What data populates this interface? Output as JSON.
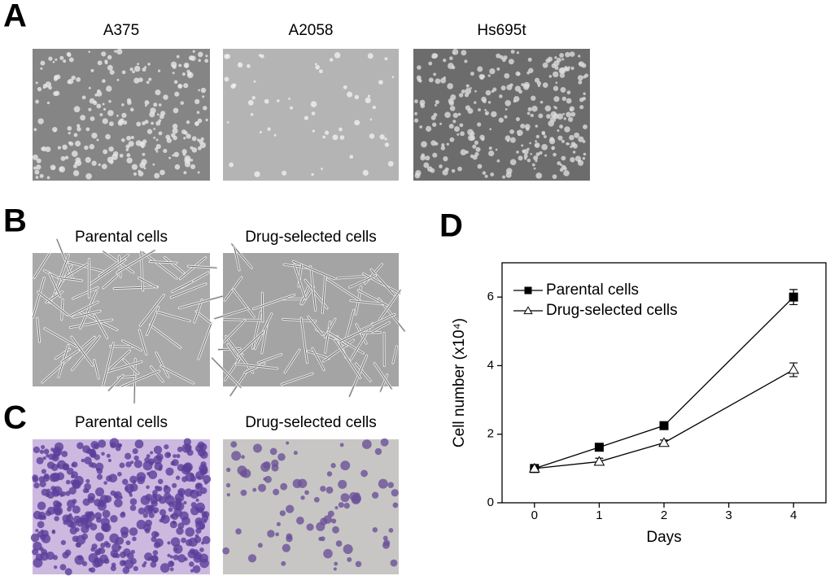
{
  "panels": [
    {
      "letter": "A",
      "images": [
        {
          "label": "A375"
        },
        {
          "label": "A2058"
        },
        {
          "label": "Hs695t"
        }
      ]
    },
    {
      "letter": "B",
      "images": [
        {
          "label": "Parental cells"
        },
        {
          "label": "Drug-selected cells"
        }
      ]
    },
    {
      "letter": "C",
      "images": [
        {
          "label": "Parental cells"
        },
        {
          "label": "Drug-selected cells"
        }
      ]
    }
  ],
  "chart_data": {
    "letter": "D",
    "type": "line",
    "x_label": "Days",
    "y_label": "Cell number (x10⁴)",
    "x": [
      0,
      1,
      2,
      4
    ],
    "series": [
      {
        "name": "Parental cells",
        "color": "#000000",
        "marker": "square",
        "filled": true,
        "values": [
          1.0,
          1.62,
          2.25,
          6.0
        ],
        "errors": [
          0.05,
          0.05,
          0.05,
          0.22
        ]
      },
      {
        "name": "Drug-selected cells",
        "color": "#000000",
        "marker": "triangle",
        "filled": false,
        "values": [
          1.0,
          1.2,
          1.75,
          3.88
        ],
        "errors": [
          0.05,
          0.1,
          0.08,
          0.2
        ]
      }
    ],
    "xlim": [
      -0.5,
      4.5
    ],
    "xticks": [
      0,
      1,
      2,
      3,
      4
    ],
    "ylim": [
      0,
      7
    ],
    "yticks": [
      0,
      2,
      4,
      6
    ],
    "legend": "upper left"
  }
}
